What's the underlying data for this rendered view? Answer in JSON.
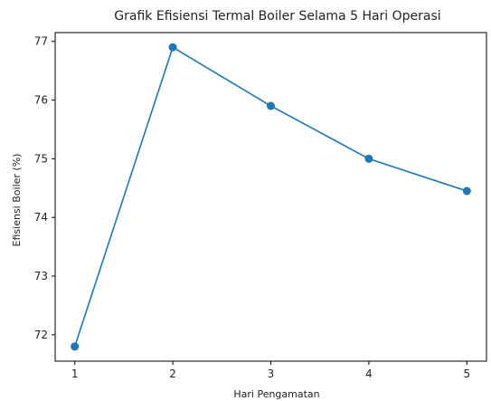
{
  "chart_data": {
    "type": "line",
    "title": "Grafik Efisiensi Termal Boiler Selama 5 Hari Operasi",
    "xlabel": "Hari Pengamatan",
    "ylabel": "Efisiensi Boiler (%)",
    "x": [
      1,
      2,
      3,
      4,
      5
    ],
    "x_ticks": [
      "1",
      "2",
      "3",
      "4",
      "5"
    ],
    "y_ticks": [
      "72",
      "73",
      "74",
      "75",
      "76",
      "77"
    ],
    "series": [
      {
        "values": [
          71.8,
          76.9,
          75.9,
          75.0,
          74.45
        ],
        "color": "#1f77b4",
        "marker": "circle"
      }
    ],
    "xlim": [
      0.8,
      5.2
    ],
    "ylim": [
      71.55,
      77.15
    ],
    "grid": false,
    "legend": "none"
  }
}
